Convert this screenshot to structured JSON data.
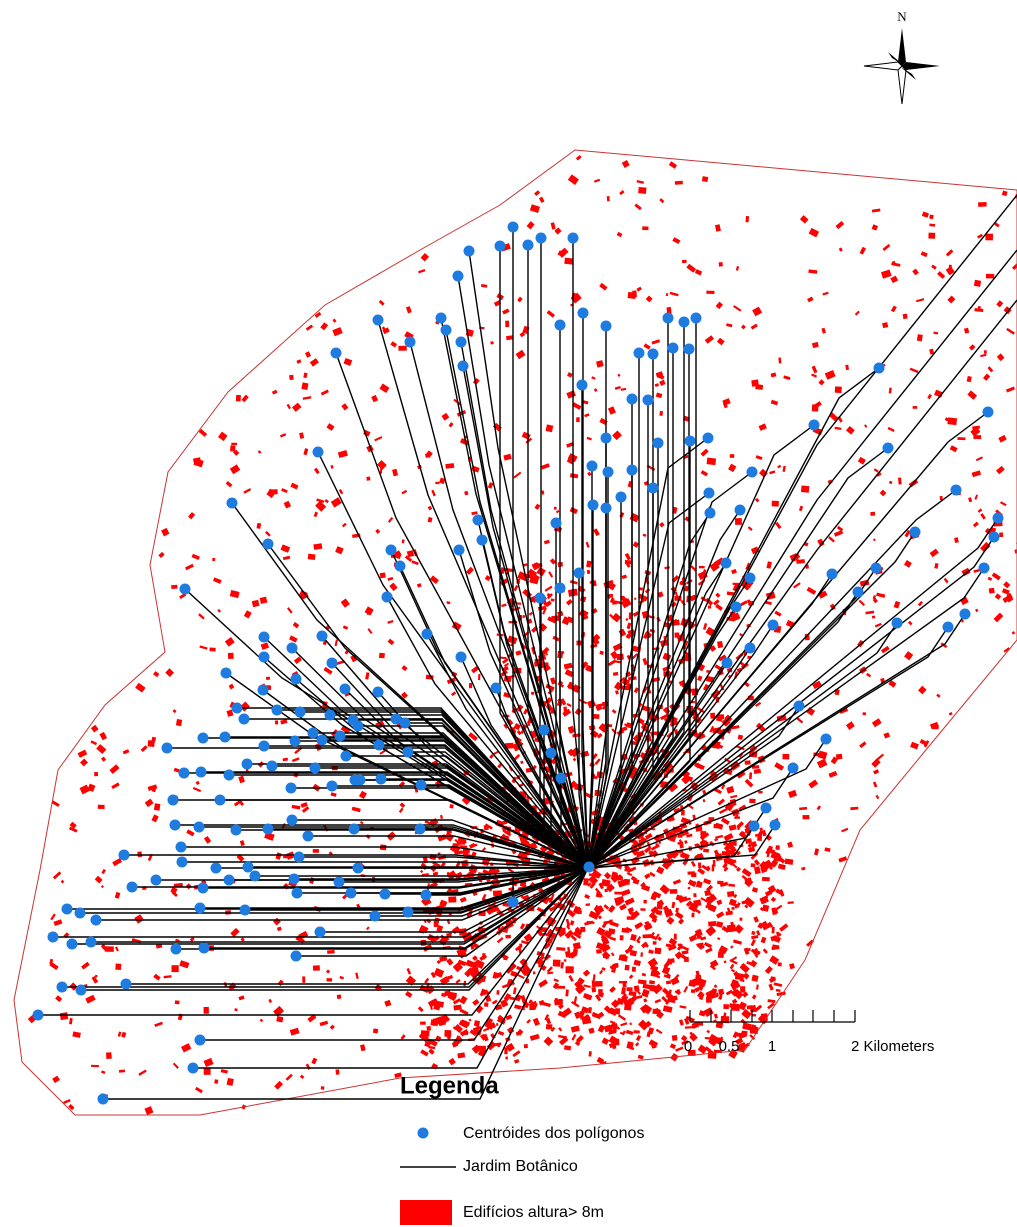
{
  "compass": {
    "label": "N"
  },
  "scale_bar": {
    "labels": [
      "0",
      "0.5",
      "1",
      "2 Kilometers"
    ]
  },
  "legend": {
    "title": "Legenda",
    "items": [
      {
        "label": "Centróides dos polígonos"
      },
      {
        "label": "Jardim Botânico"
      },
      {
        "label": "Edifícios altura> 8m"
      }
    ]
  }
}
